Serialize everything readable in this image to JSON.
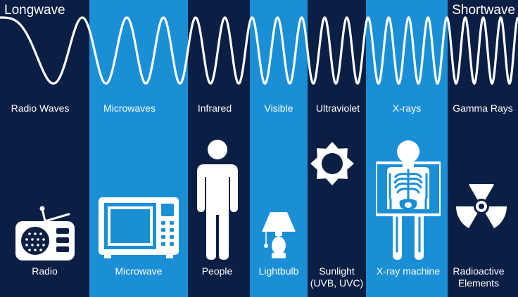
{
  "labels": {
    "longwave": "Longwave",
    "shortwave": "Shortwave"
  },
  "bands": [
    {
      "category": "Radio Waves",
      "example": "Radio",
      "icon": "radio-icon",
      "shade": "dark"
    },
    {
      "category": "Microwaves",
      "example": "Microwave",
      "icon": "microwave-oven-icon",
      "shade": "light"
    },
    {
      "category": "Infrared",
      "example": "People",
      "icon": "person-icon",
      "shade": "dark"
    },
    {
      "category": "Visible",
      "example": "Lightbulb",
      "icon": "lamp-icon",
      "shade": "light"
    },
    {
      "category": "Ultraviolet",
      "example": "Sunlight (UVB, UVC)",
      "example_lines": [
        "Sunlight",
        "(UVB, UVC)"
      ],
      "icon": "sun-icon",
      "shade": "dark"
    },
    {
      "category": "X-rays",
      "example": "X-ray machine",
      "icon": "xray-skeleton-icon",
      "shade": "light"
    },
    {
      "category": "Gamma Rays",
      "example": "Radioactive Elements",
      "example_lines": [
        "Radioactive",
        "Elements"
      ],
      "icon": "radiation-icon",
      "shade": "dark"
    }
  ],
  "colors": {
    "dark_band": "#0b1f45",
    "light_band": "#1a8fd6",
    "foreground": "#ffffff"
  }
}
